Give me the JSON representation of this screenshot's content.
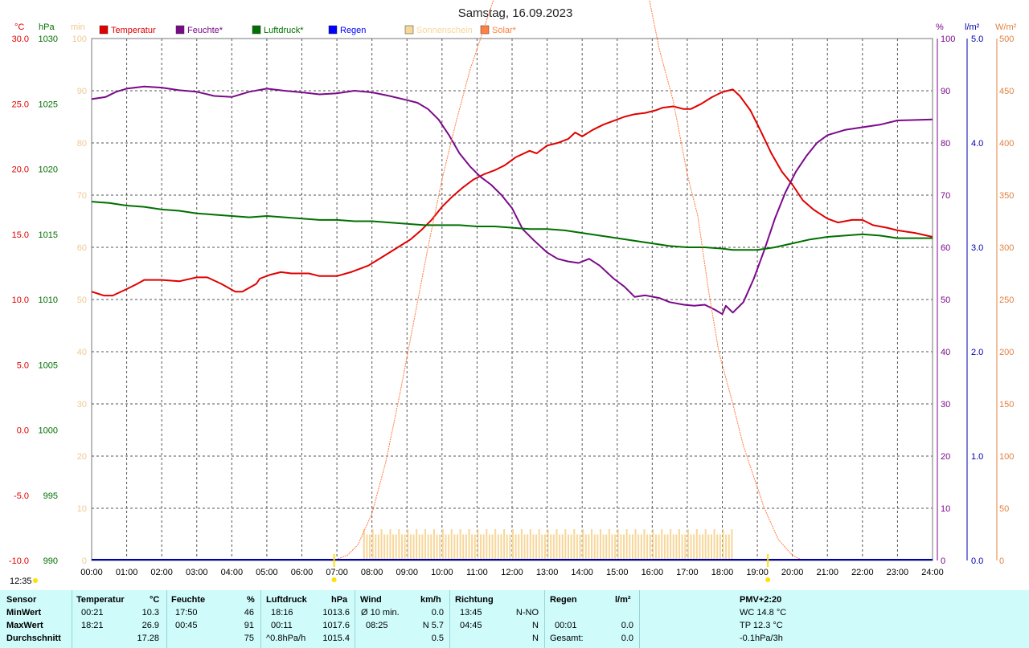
{
  "title": "Samstag, 16.09.2023",
  "left_time_label": "12:35",
  "axis_units": {
    "temp": "°C",
    "press": "hPa",
    "sun": "min",
    "hum": "%",
    "rain": "l/m²",
    "solar": "W/m²"
  },
  "legend": [
    {
      "label": "Temperatur",
      "color": "#e00000"
    },
    {
      "label": "Feuchte*",
      "color": "#7a0a8a"
    },
    {
      "label": "Luftdruck*",
      "color": "#007000"
    },
    {
      "label": "Regen",
      "color": "#0000ff"
    },
    {
      "label": "Sonnenschein",
      "color": "#f7d79a"
    },
    {
      "label": "Solar*",
      "color": "#ff8040"
    }
  ],
  "colors": {
    "temp": "#e00000",
    "hum": "#7a0a8a",
    "press": "#007000",
    "rain": "#0000aa",
    "sun": "#f7d79a",
    "solar": "#ff7a40",
    "sun_axis": "#f0c890",
    "solar_axis": "#e08040",
    "grid": "#555555"
  },
  "chart_data": {
    "type": "line",
    "title": "Samstag, 16.09.2023",
    "x_ticks": [
      "00:00",
      "01:00",
      "02:00",
      "03:00",
      "04:00",
      "05:00",
      "06:00",
      "07:00",
      "08:00",
      "09:00",
      "10:00",
      "11:00",
      "12:00",
      "13:00",
      "14:00",
      "15:00",
      "16:00",
      "17:00",
      "18:00",
      "19:00",
      "20:00",
      "21:00",
      "22:00",
      "23:00",
      "24:00"
    ],
    "xlim_hours": [
      0,
      24
    ],
    "axes": {
      "temp": {
        "unit": "°C",
        "range": [
          -10,
          30
        ],
        "ticks": [
          "-10.0",
          "-5.0",
          "0.0",
          "5.0",
          "10.0",
          "15.0",
          "20.0",
          "25.0",
          "30.0"
        ]
      },
      "press": {
        "unit": "hPa",
        "range": [
          990,
          1030
        ],
        "ticks": [
          "990",
          "995",
          "1000",
          "1005",
          "1010",
          "1015",
          "1020",
          "1025",
          "1030"
        ]
      },
      "sun": {
        "unit": "min",
        "range": [
          0,
          100
        ],
        "ticks": [
          "0",
          "10",
          "20",
          "30",
          "40",
          "50",
          "60",
          "70",
          "80",
          "90",
          "100"
        ]
      },
      "hum": {
        "unit": "%",
        "range": [
          0,
          100
        ],
        "ticks": [
          "0",
          "10",
          "20",
          "30",
          "40",
          "50",
          "60",
          "70",
          "80",
          "90",
          "100"
        ]
      },
      "rain": {
        "unit": "l/m²",
        "range": [
          0,
          5
        ],
        "ticks": [
          "0.0",
          "1.0",
          "2.0",
          "3.0",
          "4.0",
          "5.0"
        ]
      },
      "solar": {
        "unit": "W/m²",
        "range": [
          0,
          500
        ],
        "ticks": [
          "0",
          "50",
          "100",
          "150",
          "200",
          "250",
          "300",
          "350",
          "400",
          "450",
          "500"
        ]
      }
    },
    "grid": true,
    "series": [
      {
        "name": "Temperatur",
        "axis": "temp",
        "points": [
          [
            0,
            10.6
          ],
          [
            0.35,
            10.3
          ],
          [
            0.6,
            10.3
          ],
          [
            1,
            10.8
          ],
          [
            1.3,
            11.2
          ],
          [
            1.5,
            11.5
          ],
          [
            2,
            11.5
          ],
          [
            2.5,
            11.4
          ],
          [
            3,
            11.7
          ],
          [
            3.3,
            11.7
          ],
          [
            3.7,
            11.2
          ],
          [
            4.1,
            10.6
          ],
          [
            4.3,
            10.6
          ],
          [
            4.7,
            11.2
          ],
          [
            4.8,
            11.6
          ],
          [
            5.1,
            11.9
          ],
          [
            5.4,
            12.1
          ],
          [
            5.7,
            12.0
          ],
          [
            6.2,
            12.0
          ],
          [
            6.5,
            11.8
          ],
          [
            7,
            11.8
          ],
          [
            7.4,
            12.1
          ],
          [
            7.9,
            12.6
          ],
          [
            8.2,
            13.1
          ],
          [
            8.5,
            13.6
          ],
          [
            8.8,
            14.1
          ],
          [
            9.1,
            14.6
          ],
          [
            9.4,
            15.3
          ],
          [
            9.7,
            16.1
          ],
          [
            10.0,
            17.1
          ],
          [
            10.3,
            17.9
          ],
          [
            10.6,
            18.6
          ],
          [
            10.9,
            19.2
          ],
          [
            11.2,
            19.6
          ],
          [
            11.5,
            19.9
          ],
          [
            11.8,
            20.3
          ],
          [
            12.1,
            20.9
          ],
          [
            12.5,
            21.4
          ],
          [
            12.7,
            21.2
          ],
          [
            13.0,
            21.8
          ],
          [
            13.3,
            22.0
          ],
          [
            13.6,
            22.3
          ],
          [
            13.8,
            22.8
          ],
          [
            14.0,
            22.5
          ],
          [
            14.3,
            23.0
          ],
          [
            14.6,
            23.4
          ],
          [
            14.9,
            23.7
          ],
          [
            15.2,
            24.0
          ],
          [
            15.5,
            24.2
          ],
          [
            15.8,
            24.3
          ],
          [
            16.1,
            24.5
          ],
          [
            16.3,
            24.7
          ],
          [
            16.6,
            24.8
          ],
          [
            16.9,
            24.6
          ],
          [
            17.1,
            24.6
          ],
          [
            17.4,
            25.0
          ],
          [
            17.7,
            25.5
          ],
          [
            18.0,
            25.9
          ],
          [
            18.3,
            26.1
          ],
          [
            18.5,
            25.6
          ],
          [
            18.8,
            24.5
          ],
          [
            19.1,
            22.9
          ],
          [
            19.4,
            21.2
          ],
          [
            19.7,
            19.8
          ],
          [
            20.0,
            18.8
          ],
          [
            20.3,
            17.6
          ],
          [
            20.6,
            16.9
          ],
          [
            21.0,
            16.2
          ],
          [
            21.3,
            15.9
          ],
          [
            21.7,
            16.1
          ],
          [
            22.0,
            16.1
          ],
          [
            22.3,
            15.7
          ],
          [
            22.7,
            15.5
          ],
          [
            23.0,
            15.3
          ],
          [
            23.5,
            15.1
          ],
          [
            24,
            14.8
          ]
        ]
      },
      {
        "name": "Feuchte*",
        "axis": "hum",
        "points": [
          [
            0,
            88.4
          ],
          [
            0.4,
            88.8
          ],
          [
            0.7,
            89.8
          ],
          [
            1,
            90.4
          ],
          [
            1.5,
            90.8
          ],
          [
            2,
            90.6
          ],
          [
            2.5,
            90.1
          ],
          [
            3,
            89.8
          ],
          [
            3.5,
            89.0
          ],
          [
            4,
            88.8
          ],
          [
            4.5,
            89.8
          ],
          [
            5,
            90.4
          ],
          [
            5.5,
            90.0
          ],
          [
            6,
            89.7
          ],
          [
            6.5,
            89.3
          ],
          [
            7,
            89.5
          ],
          [
            7.5,
            90.0
          ],
          [
            8,
            89.7
          ],
          [
            8.5,
            89.0
          ],
          [
            9,
            88.2
          ],
          [
            9.3,
            87.7
          ],
          [
            9.6,
            86.5
          ],
          [
            9.9,
            84.5
          ],
          [
            10.2,
            81.5
          ],
          [
            10.5,
            78.0
          ],
          [
            10.8,
            75.5
          ],
          [
            11.1,
            73.5
          ],
          [
            11.4,
            72.0
          ],
          [
            11.7,
            70.0
          ],
          [
            12.0,
            67.5
          ],
          [
            12.3,
            63.5
          ],
          [
            12.6,
            61.5
          ],
          [
            13.0,
            59.0
          ],
          [
            13.3,
            57.8
          ],
          [
            13.6,
            57.3
          ],
          [
            13.9,
            57.0
          ],
          [
            14.2,
            57.8
          ],
          [
            14.5,
            56.5
          ],
          [
            14.9,
            54.0
          ],
          [
            15.2,
            52.5
          ],
          [
            15.5,
            50.5
          ],
          [
            15.8,
            50.8
          ],
          [
            16.2,
            50.3
          ],
          [
            16.5,
            49.5
          ],
          [
            16.9,
            49.0
          ],
          [
            17.2,
            48.8
          ],
          [
            17.5,
            49.0
          ],
          [
            17.8,
            48.0
          ],
          [
            18.0,
            47.2
          ],
          [
            18.1,
            48.8
          ],
          [
            18.3,
            47.5
          ],
          [
            18.6,
            49.5
          ],
          [
            18.9,
            54.0
          ],
          [
            19.2,
            59.5
          ],
          [
            19.5,
            65.5
          ],
          [
            19.8,
            70.5
          ],
          [
            20.1,
            74.5
          ],
          [
            20.4,
            77.5
          ],
          [
            20.7,
            80.0
          ],
          [
            21.0,
            81.5
          ],
          [
            21.5,
            82.5
          ],
          [
            22.0,
            83.0
          ],
          [
            22.5,
            83.5
          ],
          [
            23.0,
            84.3
          ],
          [
            24,
            84.5
          ]
        ]
      },
      {
        "name": "Luftdruck*",
        "axis": "press",
        "points": [
          [
            0,
            1017.5
          ],
          [
            0.5,
            1017.4
          ],
          [
            1,
            1017.2
          ],
          [
            1.5,
            1017.1
          ],
          [
            2,
            1016.9
          ],
          [
            2.5,
            1016.8
          ],
          [
            3,
            1016.6
          ],
          [
            3.5,
            1016.5
          ],
          [
            4,
            1016.4
          ],
          [
            4.5,
            1016.3
          ],
          [
            5,
            1016.4
          ],
          [
            5.5,
            1016.3
          ],
          [
            6,
            1016.2
          ],
          [
            6.5,
            1016.1
          ],
          [
            7,
            1016.1
          ],
          [
            7.5,
            1016.0
          ],
          [
            8,
            1016.0
          ],
          [
            8.5,
            1015.9
          ],
          [
            9,
            1015.8
          ],
          [
            9.5,
            1015.7
          ],
          [
            10,
            1015.7
          ],
          [
            10.5,
            1015.7
          ],
          [
            11,
            1015.6
          ],
          [
            11.5,
            1015.6
          ],
          [
            12,
            1015.5
          ],
          [
            12.5,
            1015.4
          ],
          [
            13,
            1015.4
          ],
          [
            13.5,
            1015.3
          ],
          [
            14,
            1015.1
          ],
          [
            14.5,
            1014.9
          ],
          [
            15,
            1014.7
          ],
          [
            15.5,
            1014.5
          ],
          [
            16,
            1014.3
          ],
          [
            16.5,
            1014.1
          ],
          [
            17,
            1014.0
          ],
          [
            17.5,
            1014.0
          ],
          [
            18,
            1013.9
          ],
          [
            18.3,
            1013.8
          ],
          [
            18.7,
            1013.8
          ],
          [
            19,
            1013.8
          ],
          [
            19.5,
            1014.0
          ],
          [
            20,
            1014.3
          ],
          [
            20.5,
            1014.6
          ],
          [
            21,
            1014.8
          ],
          [
            21.5,
            1014.9
          ],
          [
            22,
            1015.0
          ],
          [
            22.5,
            1014.9
          ],
          [
            23,
            1014.7
          ],
          [
            24,
            1014.7
          ]
        ]
      },
      {
        "name": "Solar*",
        "axis": "solar",
        "points": [
          [
            6.9,
            0
          ],
          [
            7.3,
            5
          ],
          [
            7.6,
            15
          ],
          [
            8.0,
            45
          ],
          [
            8.4,
            95
          ],
          [
            8.8,
            160
          ],
          [
            9.2,
            230
          ],
          [
            9.6,
            300
          ],
          [
            10.0,
            365
          ],
          [
            10.4,
            420
          ],
          [
            10.8,
            470
          ],
          [
            11.2,
            510
          ],
          [
            11.5,
            540
          ],
          [
            15.9,
            540
          ],
          [
            16.2,
            490
          ],
          [
            16.6,
            440
          ],
          [
            17.0,
            370
          ],
          [
            17.3,
            330
          ],
          [
            17.6,
            260
          ],
          [
            17.9,
            200
          ],
          [
            18.3,
            150
          ],
          [
            18.6,
            110
          ],
          [
            18.9,
            80
          ],
          [
            19.2,
            50
          ],
          [
            19.6,
            20
          ],
          [
            20.0,
            5
          ],
          [
            20.3,
            0
          ]
        ]
      },
      {
        "name": "Sonnenschein",
        "axis": "sun",
        "bar_hours": [
          7.75,
          18.3
        ],
        "approx_value": 5
      },
      {
        "name": "Regen",
        "axis": "rain",
        "value": 0.0
      }
    ],
    "markers": [
      {
        "hour": 6.92,
        "note": "sunrise"
      },
      {
        "hour": 19.3,
        "note": "sunset"
      }
    ]
  },
  "stats": {
    "headers": {
      "sensor": "Sensor",
      "temp": "Temperatur",
      "temp_unit": "°C",
      "hum": "Feuchte",
      "hum_unit": "%",
      "press": "Luftdruck",
      "press_unit": "hPa",
      "wind": "Wind",
      "wind_unit": "km/h",
      "dir": "Richtung",
      "rain": "Regen",
      "rain_unit": "l/m²",
      "pmv": "PMV+2:20"
    },
    "rows": [
      {
        "label": "MinWert",
        "temp_time": "00:21",
        "temp_val": "10.3",
        "hum_time": "17:50",
        "hum_val": "46",
        "press_time": "18:16",
        "press_val": "1013.6",
        "wind_label": "Ø 10 min.",
        "wind_val": "0.0",
        "dir_time": "13:45",
        "dir_val": "N-NO",
        "rain_time": "",
        "rain_val": "",
        "pmv": "WC 14.8 °C"
      },
      {
        "label": "MaxWert",
        "temp_time": "18:21",
        "temp_val": "26.9",
        "hum_time": "00:45",
        "hum_val": "91",
        "press_time": "00:11",
        "press_val": "1017.6",
        "wind_label": "08:25",
        "wind_val": "N 5.7",
        "dir_time": "04:45",
        "dir_val": "N",
        "rain_time": "00:01",
        "rain_val": "0.0",
        "pmv": "TP 12.3 °C"
      },
      {
        "label": "Durchschnitt",
        "temp_time": "",
        "temp_val": "17.28",
        "hum_time": "",
        "hum_val": "75",
        "press_time": "^0.8hPa/h",
        "press_val": "1015.4",
        "wind_label": "",
        "wind_val": "0.5",
        "dir_time": "",
        "dir_val": "N",
        "rain_time": "Gesamt:",
        "rain_val": "0.0",
        "pmv": "-0.1hPa/3h"
      }
    ]
  }
}
